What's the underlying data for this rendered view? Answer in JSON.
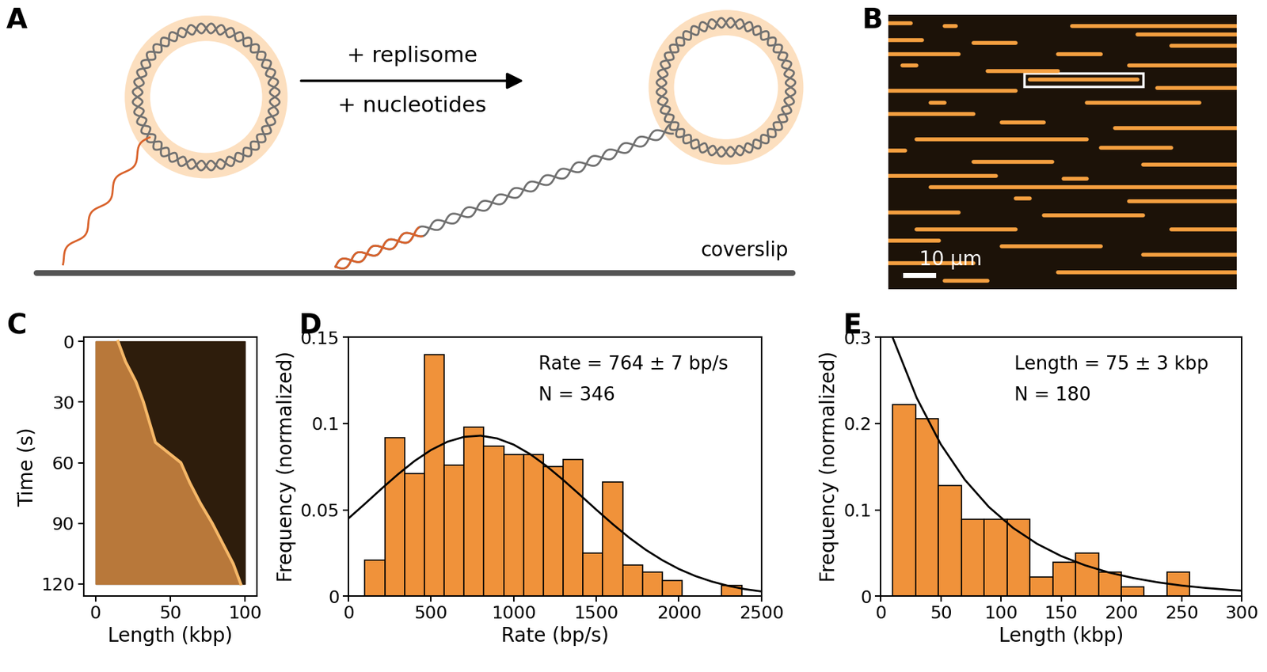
{
  "diagram": {
    "panel_label": "A",
    "arrow_top": "+ replisome",
    "arrow_bottom": "+ nucleotides",
    "surface_label": "coverslip"
  },
  "micrograph": {
    "panel_label": "B",
    "width": 123,
    "height": 97,
    "molecules": [
      [
        0,
        8,
        3
      ],
      [
        20,
        24,
        4
      ],
      [
        65,
        123,
        4
      ],
      [
        88,
        123,
        7
      ],
      [
        0,
        12,
        9
      ],
      [
        30,
        45,
        10
      ],
      [
        100,
        123,
        11
      ],
      [
        50,
        88,
        23
      ],
      [
        0,
        25,
        14
      ],
      [
        60,
        75,
        14
      ],
      [
        5,
        10,
        18
      ],
      [
        85,
        123,
        18
      ],
      [
        35,
        60,
        20
      ],
      [
        0,
        45,
        27
      ],
      [
        95,
        123,
        26
      ],
      [
        15,
        20,
        31
      ],
      [
        70,
        110,
        31
      ],
      [
        0,
        30,
        35
      ],
      [
        40,
        55,
        38
      ],
      [
        80,
        123,
        40
      ],
      [
        10,
        70,
        44
      ],
      [
        0,
        6,
        48
      ],
      [
        75,
        100,
        47
      ],
      [
        30,
        58,
        52
      ],
      [
        90,
        123,
        53
      ],
      [
        0,
        38,
        57
      ],
      [
        62,
        70,
        58
      ],
      [
        15,
        123,
        61
      ],
      [
        45,
        50,
        65
      ],
      [
        85,
        123,
        66
      ],
      [
        0,
        25,
        70
      ],
      [
        55,
        90,
        71
      ],
      [
        10,
        45,
        76
      ],
      [
        100,
        123,
        76
      ],
      [
        0,
        18,
        80
      ],
      [
        40,
        75,
        82
      ],
      [
        90,
        123,
        85
      ],
      [
        0,
        30,
        88
      ],
      [
        60,
        123,
        91
      ],
      [
        20,
        35,
        94
      ]
    ],
    "highlight": 7,
    "scale_bar": {
      "length": 10,
      "label": "10 µm"
    }
  },
  "chart_data": [
    {
      "panel_label": "C",
      "type": "kymograph",
      "xlabel": "Length (kbp)",
      "ylabel": "Time (s)",
      "xlim": [
        -8,
        108
      ],
      "ylim": [
        126,
        -2
      ],
      "xticks": [
        0,
        50,
        100
      ],
      "yticks": [
        0,
        30,
        60,
        90,
        120
      ],
      "image_extent": [
        0,
        100,
        0,
        120
      ],
      "x": [
        15,
        20,
        27,
        32,
        36,
        40,
        57,
        63,
        70,
        78,
        85,
        92,
        97
      ],
      "values": [
        0,
        10,
        20,
        30,
        40,
        50,
        60,
        70,
        80,
        90,
        100,
        110,
        120
      ]
    },
    {
      "panel_label": "D",
      "type": "histogram",
      "xlabel": "Rate (bp/s)",
      "ylabel": "Frequency (normalized)",
      "xlim": [
        0,
        2500
      ],
      "ylim": [
        0,
        0.15
      ],
      "xticks": [
        0,
        500,
        1000,
        1500,
        2000,
        2500
      ],
      "yticks": [
        0,
        0.05,
        0.1,
        0.15
      ],
      "color": "#f0923a",
      "bins": [
        100,
        220,
        340,
        460,
        580,
        700,
        820,
        940,
        1060,
        1180,
        1300,
        1420,
        1540,
        1660,
        1780,
        1900,
        2020,
        2140,
        2260,
        2380
      ],
      "counts": [
        0.021,
        0.092,
        0.071,
        0.14,
        0.076,
        0.098,
        0.087,
        0.082,
        0.082,
        0.075,
        0.079,
        0.025,
        0.066,
        0.018,
        0.014,
        0.009,
        0,
        0,
        0.006
      ],
      "fit": {
        "type": "line",
        "color": "#000000",
        "x": [
          0,
          100,
          200,
          300,
          400,
          500,
          600,
          700,
          800,
          900,
          1000,
          1100,
          1200,
          1300,
          1400,
          1500,
          1600,
          1700,
          1800,
          1900,
          2000,
          2100,
          2200,
          2300,
          2400,
          2500
        ],
        "values": [
          0.045,
          0.0535,
          0.0622,
          0.0706,
          0.0783,
          0.0847,
          0.0895,
          0.0923,
          0.093,
          0.0914,
          0.0878,
          0.0823,
          0.0753,
          0.0673,
          0.0588,
          0.0501,
          0.0417,
          0.0338,
          0.0268,
          0.0208,
          0.0157,
          0.0116,
          0.0084,
          0.0059,
          0.004,
          0.0027
        ]
      },
      "annotations": [
        "Rate = 764 ± 7 bp/s",
        "N = 346"
      ]
    },
    {
      "panel_label": "E",
      "type": "histogram",
      "xlabel": "Length (kbp)",
      "ylabel": "Frequency (normalized)",
      "xlim": [
        0,
        300
      ],
      "ylim": [
        0,
        0.3
      ],
      "xticks": [
        0,
        50,
        100,
        150,
        200,
        250,
        300
      ],
      "yticks": [
        0,
        0.1,
        0.2,
        0.3
      ],
      "color": "#f0923a",
      "bins": [
        10,
        29,
        48,
        67,
        86,
        105,
        124,
        143,
        162,
        181,
        200,
        219,
        238,
        257
      ],
      "counts": [
        0.222,
        0.206,
        0.128,
        0.089,
        0.089,
        0.089,
        0.022,
        0.039,
        0.05,
        0.028,
        0.011,
        0,
        0.028
      ],
      "fit": {
        "type": "line",
        "color": "#000000",
        "x": [
          10,
          30,
          50,
          70,
          90,
          110,
          130,
          150,
          170,
          190,
          210,
          230,
          250,
          270,
          290,
          300
        ],
        "values": [
          0.3,
          0.2299,
          0.1761,
          0.1349,
          0.1033,
          0.0791,
          0.0606,
          0.0464,
          0.0356,
          0.0272,
          0.0209,
          0.016,
          0.0122,
          0.0094,
          0.0072,
          0.0063
        ]
      },
      "annotations": [
        "Length = 75 ± 3 kbp",
        "N = 180"
      ]
    }
  ]
}
